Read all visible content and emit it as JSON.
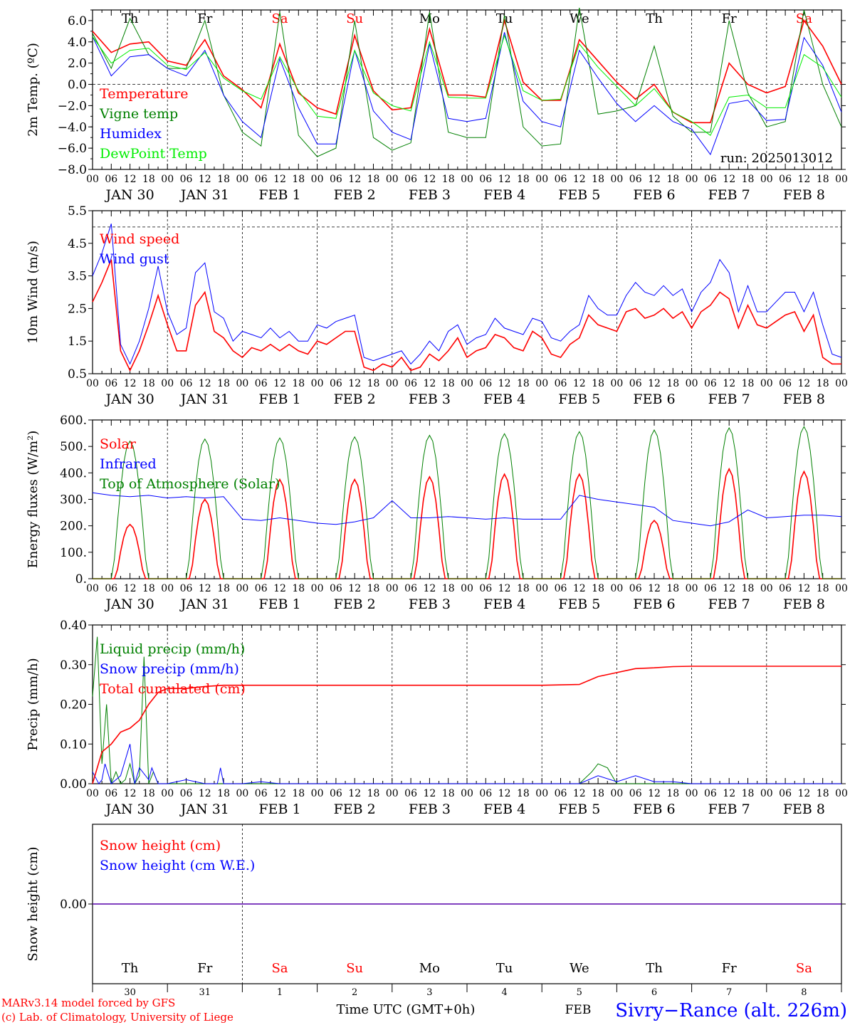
{
  "colors": {
    "temperature": "#ff0000",
    "vigne": "#008000",
    "humidex": "#0000ff",
    "dewpoint": "#00ee00",
    "weekend": "#ff0000",
    "axis": "#000000",
    "footer_location": "#0000ff",
    "footer_credit": "#ff0000"
  },
  "days": [
    {
      "abbr": "Th",
      "date": "JAN 30",
      "num": "30",
      "weekend": false
    },
    {
      "abbr": "Fr",
      "date": "JAN 31",
      "num": "31",
      "weekend": false
    },
    {
      "abbr": "Sa",
      "date": "FEB  1",
      "num": "1",
      "weekend": true
    },
    {
      "abbr": "Su",
      "date": "FEB  2",
      "num": "2",
      "weekend": true
    },
    {
      "abbr": "Mo",
      "date": "FEB  3",
      "num": "3",
      "weekend": false
    },
    {
      "abbr": "Tu",
      "date": "FEB  4",
      "num": "4",
      "weekend": false
    },
    {
      "abbr": "We",
      "date": "FEB  5",
      "num": "5",
      "weekend": false
    },
    {
      "abbr": "Th",
      "date": "FEB  6",
      "num": "6",
      "weekend": false
    },
    {
      "abbr": "Fr",
      "date": "FEB  7",
      "num": "7",
      "weekend": false
    },
    {
      "abbr": "Sa",
      "date": "FEB  8",
      "num": "8",
      "weekend": true
    }
  ],
  "hour_ticks": [
    "00",
    "06",
    "12",
    "18"
  ],
  "chart_data": [
    {
      "type": "line",
      "ylabel": "2m Temp. (ºC)",
      "ylim": [
        -8,
        7
      ],
      "yticks": [
        -8,
        -6,
        -4,
        -2,
        0,
        2,
        4,
        6
      ],
      "ytick_labels": [
        "−8.0",
        "−6.0",
        "−4.0",
        "−2.0",
        "0.0",
        "2.0",
        "4.0",
        "6.0"
      ],
      "annotation": "run: 2025013012",
      "x_hours": [
        0,
        6,
        12,
        18,
        24,
        30,
        36,
        42,
        48,
        54,
        60,
        66,
        72,
        78,
        84,
        90,
        96,
        102,
        108,
        114,
        120,
        126,
        132,
        138,
        144,
        150,
        156,
        162,
        168,
        174,
        180,
        186,
        192,
        198,
        204,
        210,
        216,
        222,
        228,
        234,
        240
      ],
      "series": [
        {
          "name": "Temperature",
          "color": "#ff0000",
          "values": [
            5.0,
            3.0,
            3.8,
            4.0,
            2.2,
            1.8,
            4.2,
            0.8,
            -0.5,
            -2.2,
            3.8,
            -0.8,
            -2.2,
            -2.8,
            4.6,
            -0.6,
            -2.4,
            -2.2,
            5.2,
            -1.0,
            -1.0,
            -1.2,
            6.0,
            0.2,
            -1.5,
            -1.5,
            4.2,
            2.2,
            0.2,
            -1.4,
            0.0,
            -2.6,
            -3.6,
            -3.6,
            2.0,
            0.0,
            -0.8,
            -0.2,
            6.0,
            3.6,
            0.0
          ]
        },
        {
          "name": "Vigne temp",
          "color": "#008000",
          "values": [
            4.8,
            1.5,
            6.2,
            2.8,
            1.5,
            1.5,
            6.0,
            -1.0,
            -4.5,
            -5.8,
            6.8,
            -4.8,
            -6.8,
            -6.0,
            6.0,
            -5.0,
            -6.2,
            -5.5,
            6.8,
            -4.5,
            -5.0,
            -5.0,
            6.5,
            -4.0,
            -5.8,
            -5.6,
            7.2,
            -2.8,
            -2.5,
            -2.0,
            3.6,
            -3.0,
            -4.5,
            -4.5,
            6.0,
            -0.8,
            -4.0,
            -3.5,
            7.0,
            0.0,
            -4.0
          ]
        },
        {
          "name": "Humidex",
          "color": "#0000ff",
          "values": [
            4.5,
            0.8,
            2.6,
            2.8,
            1.5,
            0.8,
            3.2,
            -1.0,
            -3.5,
            -5.0,
            2.4,
            -2.2,
            -5.6,
            -5.6,
            3.2,
            -2.5,
            -4.5,
            -5.2,
            3.8,
            -3.2,
            -3.5,
            -3.2,
            4.9,
            -1.6,
            -3.5,
            -4.0,
            3.2,
            0.6,
            -1.8,
            -3.5,
            -2.0,
            -3.5,
            -4.2,
            -6.6,
            -1.8,
            -1.5,
            -3.4,
            -3.3,
            4.4,
            1.8,
            -2.6
          ]
        },
        {
          "name": "DewPoint Temp",
          "color": "#00ee00",
          "values": [
            4.5,
            2.0,
            3.2,
            3.4,
            1.8,
            1.4,
            3.0,
            0.6,
            -0.6,
            -1.4,
            2.6,
            -0.6,
            -3.0,
            -3.2,
            3.2,
            -0.8,
            -2.0,
            -2.5,
            4.0,
            -1.2,
            -1.3,
            -1.3,
            4.6,
            -0.6,
            -1.5,
            -1.4,
            3.8,
            1.6,
            -0.2,
            -2.0,
            -0.4,
            -2.6,
            -3.5,
            -4.8,
            -1.2,
            -1.0,
            -2.2,
            -2.2,
            2.8,
            1.6,
            -1.2
          ]
        }
      ]
    },
    {
      "type": "line",
      "ylabel": "10m Wind (m/s)",
      "ylim": [
        0.5,
        5.5
      ],
      "yticks": [
        0.5,
        1.5,
        2.5,
        3.5,
        4.5,
        5.5
      ],
      "ytick_labels": [
        "0.5",
        "1.5",
        "2.5",
        "3.5",
        "4.5",
        "5.5"
      ],
      "dashed_at": 5.0,
      "x_hours": [
        0,
        3,
        6,
        9,
        12,
        15,
        18,
        21,
        24,
        27,
        30,
        33,
        36,
        39,
        42,
        45,
        48,
        51,
        54,
        57,
        60,
        63,
        66,
        69,
        72,
        75,
        78,
        81,
        84,
        87,
        90,
        93,
        96,
        99,
        102,
        105,
        108,
        111,
        114,
        117,
        120,
        123,
        126,
        129,
        132,
        135,
        138,
        141,
        144,
        147,
        150,
        153,
        156,
        159,
        162,
        165,
        168,
        171,
        174,
        177,
        180,
        183,
        186,
        189,
        192,
        195,
        198,
        201,
        204,
        207,
        210,
        213,
        216,
        219,
        222,
        225,
        228,
        231,
        234,
        237,
        240
      ],
      "series": [
        {
          "name": "Wind speed",
          "color": "#ff0000",
          "values": [
            2.7,
            3.3,
            4.0,
            1.2,
            0.6,
            1.2,
            2.0,
            2.9,
            2.0,
            1.2,
            1.2,
            2.6,
            3.0,
            1.8,
            1.6,
            1.2,
            1.0,
            1.3,
            1.2,
            1.4,
            1.2,
            1.4,
            1.2,
            1.1,
            1.5,
            1.4,
            1.6,
            1.8,
            1.8,
            0.7,
            0.6,
            0.8,
            0.7,
            1.0,
            0.6,
            0.7,
            1.1,
            0.9,
            1.2,
            1.6,
            1.0,
            1.2,
            1.3,
            1.7,
            1.6,
            1.3,
            1.2,
            1.8,
            1.6,
            1.1,
            1.0,
            1.4,
            1.6,
            2.3,
            2.0,
            1.9,
            1.8,
            2.4,
            2.5,
            2.2,
            2.3,
            2.5,
            2.2,
            2.4,
            1.9,
            2.4,
            2.6,
            3.0,
            2.8,
            1.9,
            2.6,
            2.0,
            1.9,
            2.1,
            2.3,
            2.4,
            1.8,
            2.3,
            1.0,
            0.8,
            0.8
          ]
        },
        {
          "name": "Wind gust",
          "color": "#0000ff",
          "values": [
            3.5,
            4.2,
            5.1,
            1.4,
            0.8,
            1.5,
            2.5,
            3.8,
            2.4,
            1.7,
            1.9,
            3.6,
            3.9,
            2.4,
            2.2,
            1.5,
            1.8,
            1.7,
            1.6,
            1.9,
            1.6,
            1.8,
            1.5,
            1.5,
            2.0,
            1.9,
            2.1,
            2.2,
            2.3,
            1.0,
            0.9,
            1.0,
            1.1,
            1.2,
            0.8,
            1.1,
            1.5,
            1.2,
            1.8,
            2.0,
            1.4,
            1.6,
            1.7,
            2.2,
            1.9,
            1.8,
            1.7,
            2.2,
            2.1,
            1.6,
            1.5,
            1.8,
            2.0,
            2.9,
            2.5,
            2.3,
            2.3,
            2.9,
            3.3,
            3.0,
            2.9,
            3.2,
            2.9,
            3.1,
            2.4,
            3.0,
            3.3,
            4.0,
            3.6,
            2.4,
            3.2,
            2.4,
            2.4,
            2.7,
            3.0,
            3.0,
            2.4,
            3.0,
            2.0,
            1.1,
            1.0
          ]
        }
      ]
    },
    {
      "type": "line",
      "ylabel": "Energy fluxes (W/m²)",
      "ylim": [
        0,
        600
      ],
      "yticks": [
        0,
        100,
        200,
        300,
        400,
        500,
        600
      ],
      "ytick_labels": [
        "0.",
        "100.",
        "200.",
        "300.",
        "400.",
        "500.",
        "600."
      ],
      "series": [
        {
          "name": "Solar",
          "color": "#ff0000",
          "day_peaks": [
            205,
            300,
            375,
            375,
            385,
            395,
            395,
            220,
            415,
            405
          ]
        },
        {
          "name": "Infrared",
          "color": "#0000ff",
          "x_hours": [
            0,
            6,
            12,
            18,
            24,
            30,
            36,
            42,
            48,
            54,
            60,
            66,
            72,
            78,
            84,
            90,
            96,
            102,
            108,
            114,
            120,
            126,
            132,
            138,
            144,
            150,
            156,
            162,
            168,
            174,
            180,
            186,
            192,
            198,
            204,
            210,
            216,
            222,
            228,
            234,
            240
          ],
          "values": [
            325,
            315,
            310,
            315,
            305,
            310,
            305,
            310,
            225,
            220,
            230,
            220,
            210,
            205,
            215,
            230,
            295,
            230,
            230,
            235,
            230,
            225,
            230,
            225,
            225,
            225,
            315,
            300,
            290,
            280,
            270,
            220,
            210,
            200,
            215,
            260,
            230,
            235,
            240,
            240,
            235
          ]
        },
        {
          "name": "Top of Atmosphere (Solar)",
          "color": "#008000",
          "day_peaks": [
            520,
            528,
            532,
            536,
            542,
            548,
            556,
            562,
            570,
            575
          ]
        }
      ]
    },
    {
      "type": "line",
      "ylabel": "Precip (mm/h)",
      "ylim": [
        0,
        0.4
      ],
      "yticks": [
        0,
        0.1,
        0.2,
        0.3,
        0.4
      ],
      "ytick_labels": [
        "0.00",
        "0.10",
        "0.20",
        "0.30",
        "0.40"
      ],
      "series": [
        {
          "name": "Liquid precip (mm/h)",
          "color": "#008000",
          "x_hours": [
            0,
            1.5,
            3,
            4.5,
            6,
            7.5,
            9,
            10.5,
            12,
            13.5,
            15,
            16.5,
            18,
            19.5,
            21,
            24,
            48,
            90,
            156,
            160,
            162,
            165,
            168,
            174,
            180,
            186,
            192,
            240
          ],
          "values": [
            0.22,
            0.37,
            0.05,
            0.2,
            0.0,
            0.03,
            0.0,
            0.01,
            0.05,
            0.0,
            0.02,
            0.32,
            0.0,
            0.03,
            0.0,
            0.0,
            0.0,
            0.0,
            0.0,
            0.03,
            0.05,
            0.04,
            0.0,
            0.0,
            0.0,
            0.0,
            0.0,
            0.0
          ]
        },
        {
          "name": "Snow precip (mm/h)",
          "color": "#0000ff",
          "x_hours": [
            0,
            2,
            3,
            4,
            6,
            9,
            12,
            13.5,
            15,
            18,
            19,
            21,
            24,
            30,
            36,
            40,
            41,
            42,
            48,
            54,
            60,
            66,
            150,
            156,
            162,
            168,
            174,
            180,
            186,
            192,
            240
          ],
          "values": [
            0.03,
            0.0,
            0.01,
            0.05,
            0.0,
            0.02,
            0.1,
            0.0,
            0.04,
            0.01,
            0.04,
            0.0,
            0.0,
            0.01,
            0.0,
            0.0,
            0.04,
            0.0,
            0.0,
            0.005,
            0.0,
            0.0,
            0.0,
            0.0,
            0.02,
            0.005,
            0.02,
            0.005,
            0.005,
            0.0,
            0.0
          ]
        },
        {
          "name": "Total cumulated (cm)",
          "color": "#ff0000",
          "x_hours": [
            0,
            3,
            6,
            9,
            12,
            15,
            18,
            21,
            24,
            30,
            36,
            42,
            48,
            60,
            72,
            96,
            120,
            144,
            156,
            162,
            168,
            174,
            180,
            186,
            192,
            240
          ],
          "values": [
            0.0,
            0.08,
            0.1,
            0.13,
            0.14,
            0.16,
            0.2,
            0.23,
            0.24,
            0.24,
            0.245,
            0.248,
            0.248,
            0.248,
            0.248,
            0.248,
            0.248,
            0.248,
            0.25,
            0.27,
            0.28,
            0.29,
            0.292,
            0.295,
            0.296,
            0.296
          ]
        }
      ]
    },
    {
      "type": "line",
      "ylabel": "Snow height (cm)",
      "ylim": [
        -1,
        1
      ],
      "yticks": [
        0
      ],
      "ytick_labels": [
        "0.00"
      ],
      "series": [
        {
          "name": "Snow height (cm)",
          "color": "#ff0000",
          "values": [
            0,
            0
          ]
        },
        {
          "name": "Snow height (cm W.E.)",
          "color": "#0000ff",
          "values": [
            0,
            0
          ]
        }
      ]
    }
  ],
  "footer": {
    "xlabel": "Time UTC (GMT+0h)",
    "month": "FEB",
    "model_line": "MARv3.14 model forced by GFS",
    "credit_line": "(c) Lab. of Climatology, University of Liege",
    "location": "Sivry−Rance (alt. 226m)"
  }
}
